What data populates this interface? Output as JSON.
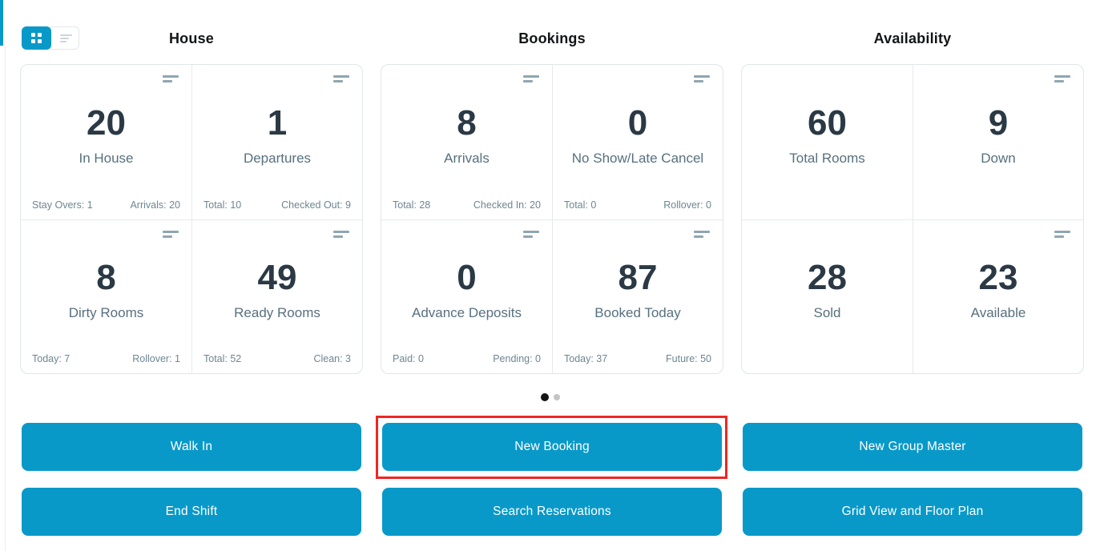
{
  "colors": {
    "primary_blue": "#0999c9",
    "annotation_red": "#ee2724",
    "stat_value": "#2b3945",
    "stat_label": "#57707e",
    "footer_text": "#6d8693",
    "card_border": "#e0e6e9"
  },
  "icons": {
    "grid_view": "grid-squares-2x2",
    "list_view": "stacked-lines",
    "card_menu": "two-horizontal-lines"
  },
  "view_toggle": {
    "active": "grid"
  },
  "sections": [
    {
      "title": "House",
      "cards": [
        {
          "value": "20",
          "label": "In House",
          "footer_left": "Stay Overs: 1",
          "footer_right": "Arrivals: 20"
        },
        {
          "value": "1",
          "label": "Departures",
          "footer_left": "Total: 10",
          "footer_right": "Checked Out: 9"
        },
        {
          "value": "8",
          "label": "Dirty Rooms",
          "footer_left": "Today: 7",
          "footer_right": "Rollover: 1"
        },
        {
          "value": "49",
          "label": "Ready Rooms",
          "footer_left": "Total: 52",
          "footer_right": "Clean: 3"
        }
      ]
    },
    {
      "title": "Bookings",
      "cards": [
        {
          "value": "8",
          "label": "Arrivals",
          "footer_left": "Total: 28",
          "footer_right": "Checked In: 20"
        },
        {
          "value": "0",
          "label": "No Show/Late Cancel",
          "footer_left": "Total: 0",
          "footer_right": "Rollover: 0"
        },
        {
          "value": "0",
          "label": "Advance Deposits",
          "footer_left": "Paid: 0",
          "footer_right": "Pending: 0"
        },
        {
          "value": "87",
          "label": "Booked Today",
          "footer_left": "Today: 37",
          "footer_right": "Future: 50"
        }
      ]
    },
    {
      "title": "Availability",
      "cards": [
        {
          "value": "60",
          "label": "Total Rooms"
        },
        {
          "value": "9",
          "label": "Down"
        },
        {
          "value": "28",
          "label": "Sold"
        },
        {
          "value": "23",
          "label": "Available"
        }
      ]
    }
  ],
  "carousel": {
    "page_count": 2,
    "active_page": 1
  },
  "actions": {
    "walk_in": "Walk In",
    "new_booking": "New Booking",
    "new_group_master": "New Group Master",
    "end_shift": "End Shift",
    "search_reservations": "Search Reservations",
    "grid_view_floor_plan": "Grid View and Floor Plan",
    "highlighted": "New Booking"
  }
}
